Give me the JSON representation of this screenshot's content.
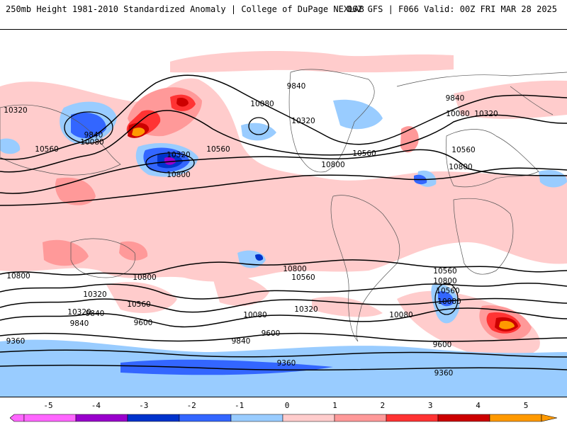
{
  "header": {
    "title_left": "250mb Height 1981-2010 Standardized Anomaly | College of DuPage NEXLAB",
    "title_right": "06Z GFS | F066 Valid: 00Z FRI MAR 28 2025"
  },
  "colorbar": {
    "ticks": [
      "-5",
      "-4",
      "-3",
      "-2",
      "-1",
      "0",
      "1",
      "2",
      "3",
      "4",
      "5"
    ],
    "colors": [
      "#ff66ff",
      "#9900cc",
      "#0033cc",
      "#3366ff",
      "#99ccff",
      "#ffffff",
      "#ffcccc",
      "#ff9999",
      "#ff3333",
      "#cc0000",
      "#ff9900"
    ]
  },
  "contour_labels": [
    "9360",
    "9600",
    "9840",
    "10080",
    "10320",
    "10560",
    "10800"
  ],
  "map_labels": [
    "10320",
    "9840",
    "10080",
    "10560",
    "10320",
    "10800",
    "10560",
    "10080",
    "10320",
    "9840",
    "10800",
    "10560",
    "10800",
    "9840",
    "10080",
    "10320",
    "10560",
    "10800",
    "10800",
    "10800",
    "10560",
    "10320",
    "10560",
    "9840",
    "9600",
    "10080",
    "10320",
    "10080",
    "10560",
    "10800",
    "10560",
    "10080",
    "9840",
    "10320",
    "9840",
    "9600",
    "9360",
    "9360",
    "9600",
    "9360"
  ]
}
